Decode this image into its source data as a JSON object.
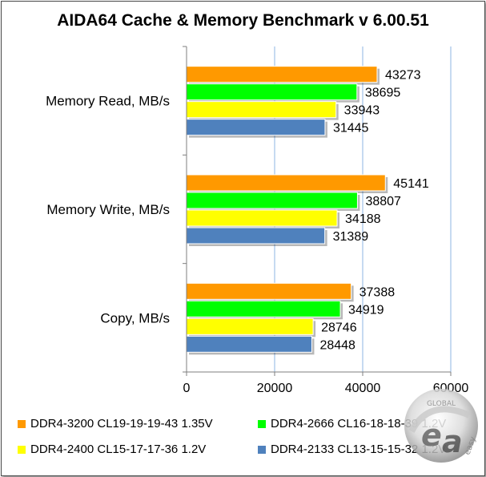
{
  "chart_data": {
    "type": "bar",
    "orientation": "horizontal",
    "title": "AIDA64 Cache & Memory Benchmark v 6.00.51",
    "categories": [
      "Memory Read, MB/s",
      "Memory Write, MB/s",
      "Copy, MB/s"
    ],
    "series": [
      {
        "name": "DDR4-3200 CL19-19-19-43 1.35V",
        "color": "#ff9900",
        "values": [
          43273,
          45141,
          37388
        ]
      },
      {
        "name": "DDR4-2666 CL16-18-18-39 1.2V",
        "color": "#00ff00",
        "values": [
          38695,
          38807,
          34919
        ]
      },
      {
        "name": "DDR4-2400 CL15-17-17-36 1.2V",
        "color": "#ffff00",
        "values": [
          33943,
          34188,
          28746
        ]
      },
      {
        "name": "DDR4-2133 CL13-15-15-32 1.2V",
        "color": "#4f81bd",
        "values": [
          31445,
          31389,
          28448
        ]
      }
    ],
    "xlim": [
      0,
      60000
    ],
    "xticks": [
      "0",
      "20000",
      "40000",
      "60000"
    ],
    "grid": "vertical",
    "legend_position": "bottom",
    "show_data_labels": true
  },
  "watermark": {
    "text_top": "GLOBAL",
    "text_bottom": "easy"
  }
}
